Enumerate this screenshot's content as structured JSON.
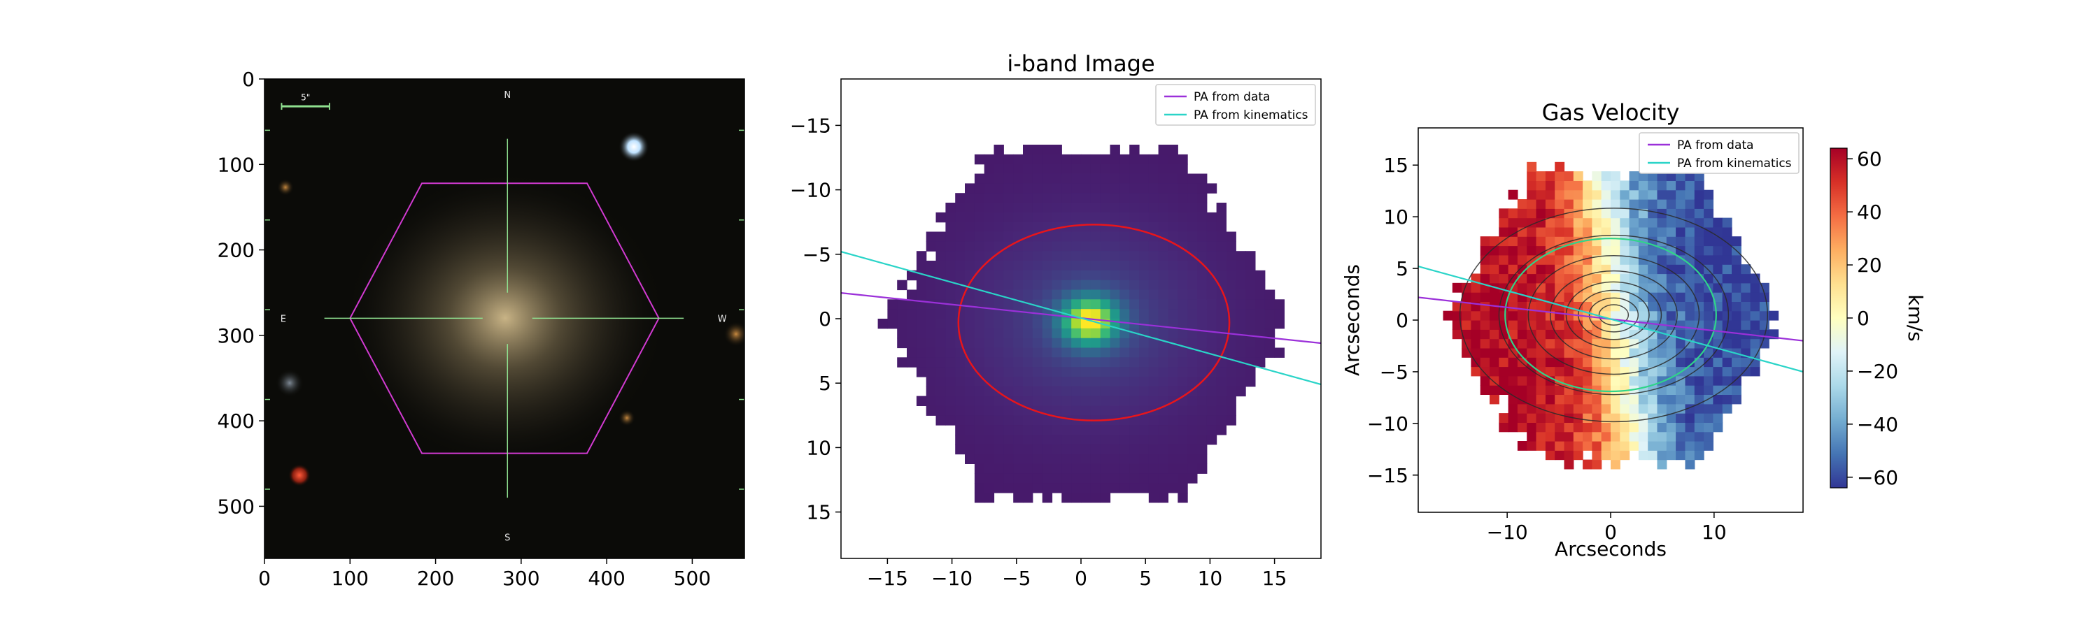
{
  "chart_data": [
    {
      "type": "image",
      "title": "",
      "x_ticks": [
        0,
        100,
        200,
        300,
        400,
        500
      ],
      "y_ticks": [
        0,
        100,
        200,
        300,
        400,
        500
      ],
      "xlim": [
        0,
        561
      ],
      "ylim": [
        561,
        0
      ],
      "compass": {
        "N": "N",
        "S": "S",
        "E": "E",
        "W": "W"
      },
      "scale_label": "5\"",
      "ifu_hexagon": [
        [
          184,
          122
        ],
        [
          377,
          122
        ],
        [
          461,
          280
        ],
        [
          377,
          438
        ],
        [
          184,
          438
        ],
        [
          100,
          280
        ]
      ],
      "colors": {
        "background": "#0b0b08",
        "hexagon": "#d23ad2",
        "crosshair": "#8fe08f",
        "galaxy": "#b0a07a"
      }
    },
    {
      "type": "heatmap",
      "title": "i-band Image",
      "xlabel": "",
      "ylabel": "",
      "x_ticks": [
        -15,
        -10,
        -5,
        0,
        5,
        10,
        15
      ],
      "y_ticks": [
        -15,
        -10,
        -5,
        0,
        5,
        10,
        15
      ],
      "xlim": [
        -18.6,
        18.6
      ],
      "ylim": [
        18.6,
        -18.6
      ],
      "colormap": "viridis",
      "ellipse": {
        "cx": 1,
        "cy": 0.3,
        "rx": 10.5,
        "ry": 7.6,
        "color": "#e8151b"
      },
      "lines": [
        {
          "name": "PA from data",
          "color": "#9b30d9",
          "points": [
            [
              -18.6,
              -2.0
            ],
            [
              18.6,
              1.9
            ]
          ]
        },
        {
          "name": "PA from kinematics",
          "color": "#2ad4c8",
          "points": [
            [
              -18.6,
              -5.2
            ],
            [
              18.6,
              5.1
            ]
          ]
        }
      ],
      "legend": {
        "placement": "top-right",
        "entries": [
          "PA from data",
          "PA from kinematics"
        ]
      }
    },
    {
      "type": "heatmap",
      "title": "Gas Velocity",
      "xlabel": "Arcseconds",
      "ylabel": "Arcseconds",
      "x_ticks": [
        -10,
        0,
        10
      ],
      "y_ticks": [
        -15,
        -10,
        -5,
        0,
        5,
        10,
        15
      ],
      "xlim": [
        -18.6,
        18.6
      ],
      "ylim": [
        -18.6,
        18.6
      ],
      "colormap": "RdYlBu",
      "ellipse": {
        "cx": 0,
        "cy": 0.5,
        "rx": 10.2,
        "ry": 7.4,
        "color": "#2fd58a"
      },
      "lines": [
        {
          "name": "PA from data",
          "color": "#9b30d9",
          "points": [
            [
              -18.6,
              2.2
            ],
            [
              18.6,
              -2.0
            ]
          ]
        },
        {
          "name": "PA from kinematics",
          "color": "#2ad4c8",
          "points": [
            [
              -18.6,
              5.2
            ],
            [
              18.6,
              -5.0
            ]
          ]
        }
      ],
      "legend": {
        "placement": "top-right",
        "entries": [
          "PA from data",
          "PA from kinematics"
        ]
      },
      "colorbar": {
        "label": "km/s",
        "ticks": [
          60,
          40,
          20,
          0,
          -20,
          -40,
          -60
        ],
        "range": [
          -64,
          64
        ]
      }
    }
  ]
}
